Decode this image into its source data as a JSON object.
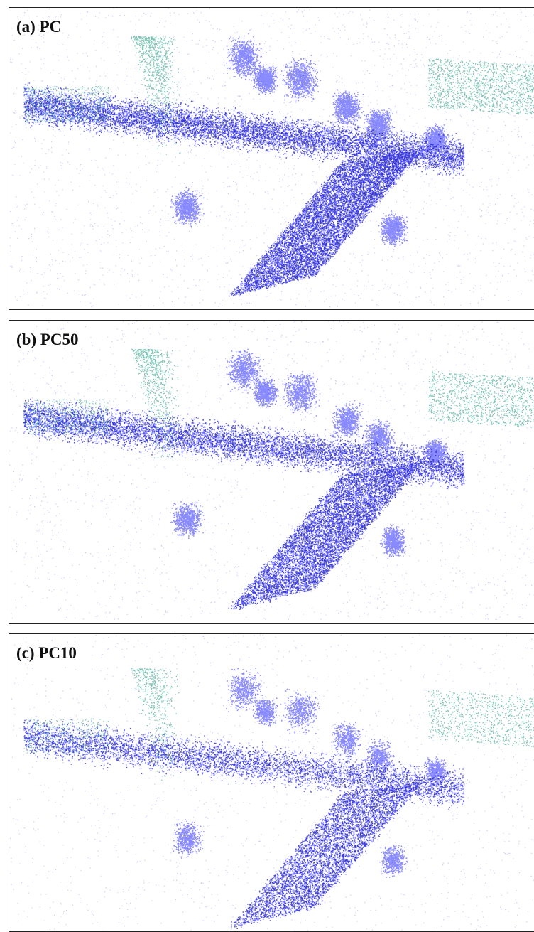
{
  "panels": [
    {
      "label": "(a) PC"
    },
    {
      "label": "(b) PC50"
    },
    {
      "label": "(c) PC10"
    }
  ]
}
